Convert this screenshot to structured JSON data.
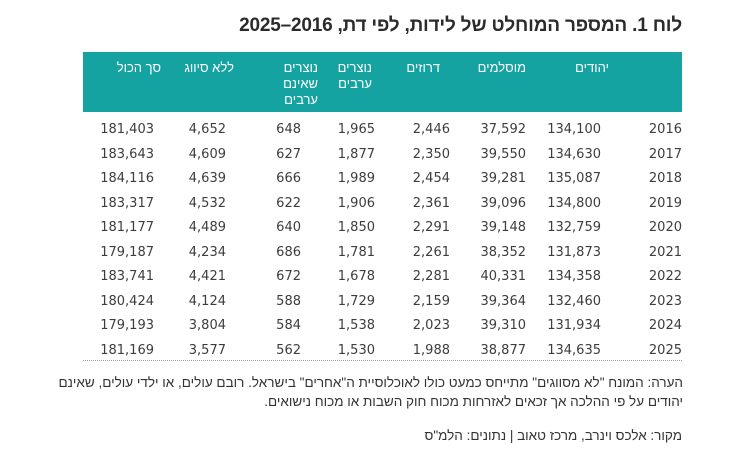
{
  "title": "לוח 1. המספר המוחלט של לידות, לפי דת, 2016–2025",
  "table": {
    "header_color": "#15a3a1",
    "columns": [
      {
        "key": "year",
        "label": ""
      },
      {
        "key": "jews",
        "label": "יהודים"
      },
      {
        "key": "muslims",
        "label": "מוסלמים"
      },
      {
        "key": "druze",
        "label": "דרוזים"
      },
      {
        "key": "arab_christians",
        "label": "נוצרים ערבים",
        "lines": [
          "נוצרים",
          "ערבים"
        ]
      },
      {
        "key": "non_arab_christians",
        "label": "נוצרים שאינם ערבים",
        "lines": [
          "נוצרים",
          "שאינם",
          "ערבים"
        ]
      },
      {
        "key": "unclassified",
        "label": "ללא סיווג"
      },
      {
        "key": "total",
        "label": "סך הכול"
      }
    ],
    "rows": [
      {
        "year": "2016",
        "jews": "134,100",
        "muslims": "37,592",
        "druze": "2,446",
        "arab_christians": "1,965",
        "non_arab_christians": "648",
        "unclassified": "4,652",
        "total": "181,403"
      },
      {
        "year": "2017",
        "jews": "134,630",
        "muslims": "39,550",
        "druze": "2,350",
        "arab_christians": "1,877",
        "non_arab_christians": "627",
        "unclassified": "4,609",
        "total": "183,643"
      },
      {
        "year": "2018",
        "jews": "135,087",
        "muslims": "39,281",
        "druze": "2,454",
        "arab_christians": "1,989",
        "non_arab_christians": "666",
        "unclassified": "4,639",
        "total": "184,116"
      },
      {
        "year": "2019",
        "jews": "134,800",
        "muslims": "39,096",
        "druze": "2,361",
        "arab_christians": "1,906",
        "non_arab_christians": "622",
        "unclassified": "4,532",
        "total": "183,317"
      },
      {
        "year": "2020",
        "jews": "132,759",
        "muslims": "39,148",
        "druze": "2,291",
        "arab_christians": "1,850",
        "non_arab_christians": "640",
        "unclassified": "4,489",
        "total": "181,177"
      },
      {
        "year": "2021",
        "jews": "131,873",
        "muslims": "38,352",
        "druze": "2,261",
        "arab_christians": "1,781",
        "non_arab_christians": "686",
        "unclassified": "4,234",
        "total": "179,187"
      },
      {
        "year": "2022",
        "jews": "134,358",
        "muslims": "40,331",
        "druze": "2,281",
        "arab_christians": "1,678",
        "non_arab_christians": "672",
        "unclassified": "4,421",
        "total": "183,741"
      },
      {
        "year": "2023",
        "jews": "132,460",
        "muslims": "39,364",
        "druze": "2,159",
        "arab_christians": "1,729",
        "non_arab_christians": "588",
        "unclassified": "4,124",
        "total": "180,424"
      },
      {
        "year": "2024",
        "jews": "131,934",
        "muslims": "39,310",
        "druze": "2,023",
        "arab_christians": "1,538",
        "non_arab_christians": "584",
        "unclassified": "3,804",
        "total": "179,193"
      },
      {
        "year": "2025",
        "jews": "134,635",
        "muslims": "38,877",
        "druze": "1,988",
        "arab_christians": "1,530",
        "non_arab_christians": "562",
        "unclassified": "3,577",
        "total": "181,169"
      }
    ]
  },
  "note": "הערה: המונח \"לא מסווגים\" מתייחס כמעט כולו לאוכלוסיית ה\"אחרים\" בישראל. רובם עולים, או ילדי עולים, שאינם יהודים על פי ההלכה אך זכאים לאזרחות מכוח חוק השבות או מכוח נישואים.",
  "source": "מקור: אלכס וינרב, מרכז טאוב | נתונים: הלמ\"ס",
  "chart_data": {
    "type": "table",
    "title": "לוח 1. המספר המוחלט של לידות, לפי דת, 2016–2025",
    "categories": [
      "2016",
      "2017",
      "2018",
      "2019",
      "2020",
      "2021",
      "2022",
      "2023",
      "2024",
      "2025"
    ],
    "series": [
      {
        "name": "יהודים",
        "values": [
          134100,
          134630,
          135087,
          134800,
          132759,
          131873,
          134358,
          132460,
          131934,
          134635
        ]
      },
      {
        "name": "מוסלמים",
        "values": [
          37592,
          39550,
          39281,
          39096,
          39148,
          38352,
          40331,
          39364,
          39310,
          38877
        ]
      },
      {
        "name": "דרוזים",
        "values": [
          2446,
          2350,
          2454,
          2361,
          2291,
          2261,
          2281,
          2159,
          2023,
          1988
        ]
      },
      {
        "name": "נוצרים ערבים",
        "values": [
          1965,
          1877,
          1989,
          1906,
          1850,
          1781,
          1678,
          1729,
          1538,
          1530
        ]
      },
      {
        "name": "נוצרים שאינם ערבים",
        "values": [
          648,
          627,
          666,
          622,
          640,
          686,
          672,
          588,
          584,
          562
        ]
      },
      {
        "name": "ללא סיווג",
        "values": [
          4652,
          4609,
          4639,
          4532,
          4489,
          4234,
          4421,
          4124,
          3804,
          3577
        ]
      },
      {
        "name": "סך הכול",
        "values": [
          181403,
          183643,
          184116,
          183317,
          181177,
          179187,
          183741,
          180424,
          179193,
          181169
        ]
      }
    ]
  }
}
